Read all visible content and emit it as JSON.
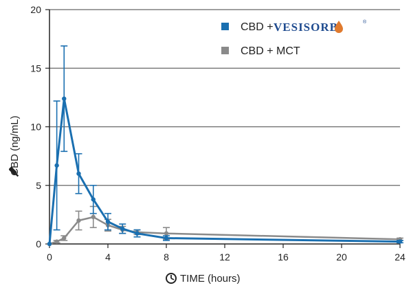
{
  "chart_data": {
    "type": "line",
    "xlabel": "TIME (hours)",
    "ylabel": "CBD (ng/mL)",
    "xlim": [
      0,
      24
    ],
    "ylim": [
      0,
      20
    ],
    "xticks": [
      0,
      4,
      8,
      12,
      16,
      20,
      24
    ],
    "yticks": [
      0,
      5,
      10,
      15,
      20
    ],
    "grid": "horizontal",
    "legend_position": "top-right",
    "series": [
      {
        "name": "CBD + VESISORB®",
        "brand_prefix": "CBD +",
        "brand_name": "VESISORB",
        "brand_mark": "®",
        "color": "#1a6fb0",
        "x": [
          0,
          0.5,
          1,
          2,
          3,
          4,
          5,
          6,
          8,
          24
        ],
        "y": [
          0,
          6.7,
          12.4,
          6.0,
          3.8,
          1.9,
          1.3,
          0.9,
          0.5,
          0.2
        ],
        "err": [
          0,
          5.5,
          4.5,
          1.7,
          1.2,
          0.7,
          0.4,
          0.3,
          0.2,
          0.1
        ]
      },
      {
        "name": "CBD + MCT",
        "color": "#8a8a8a",
        "x": [
          0,
          0.5,
          1,
          2,
          3,
          4,
          5,
          6,
          8,
          24
        ],
        "y": [
          0,
          0.2,
          0.5,
          2.0,
          2.3,
          1.6,
          1.2,
          1.0,
          0.9,
          0.4
        ],
        "err": [
          0,
          0.1,
          0.2,
          0.8,
          0.9,
          0.5,
          0.3,
          0.2,
          0.5,
          0.1
        ]
      }
    ]
  }
}
